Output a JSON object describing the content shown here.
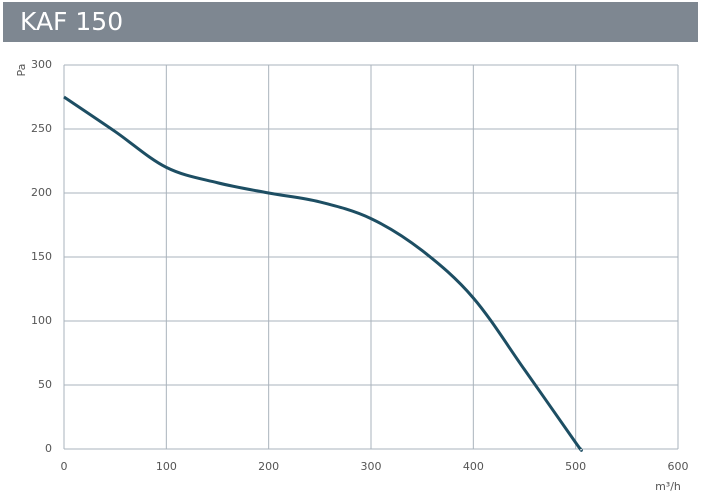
{
  "chart_data": {
    "type": "line",
    "title": "KAF 150",
    "y_label": "Pa",
    "x_label": "m³/h",
    "x": [
      0,
      50,
      100,
      150,
      200,
      250,
      300,
      350,
      400,
      450,
      500,
      505
    ],
    "values": [
      275,
      248,
      220,
      208,
      200,
      193,
      180,
      155,
      118,
      62,
      5,
      0
    ],
    "color": "#1d4e63",
    "xlim": [
      0,
      600
    ],
    "xticks": [
      0,
      100,
      200,
      300,
      400,
      500,
      600
    ],
    "ylim": [
      0,
      300
    ],
    "yticks": [
      0,
      50,
      100,
      150,
      200,
      250,
      300
    ],
    "grid": true
  }
}
